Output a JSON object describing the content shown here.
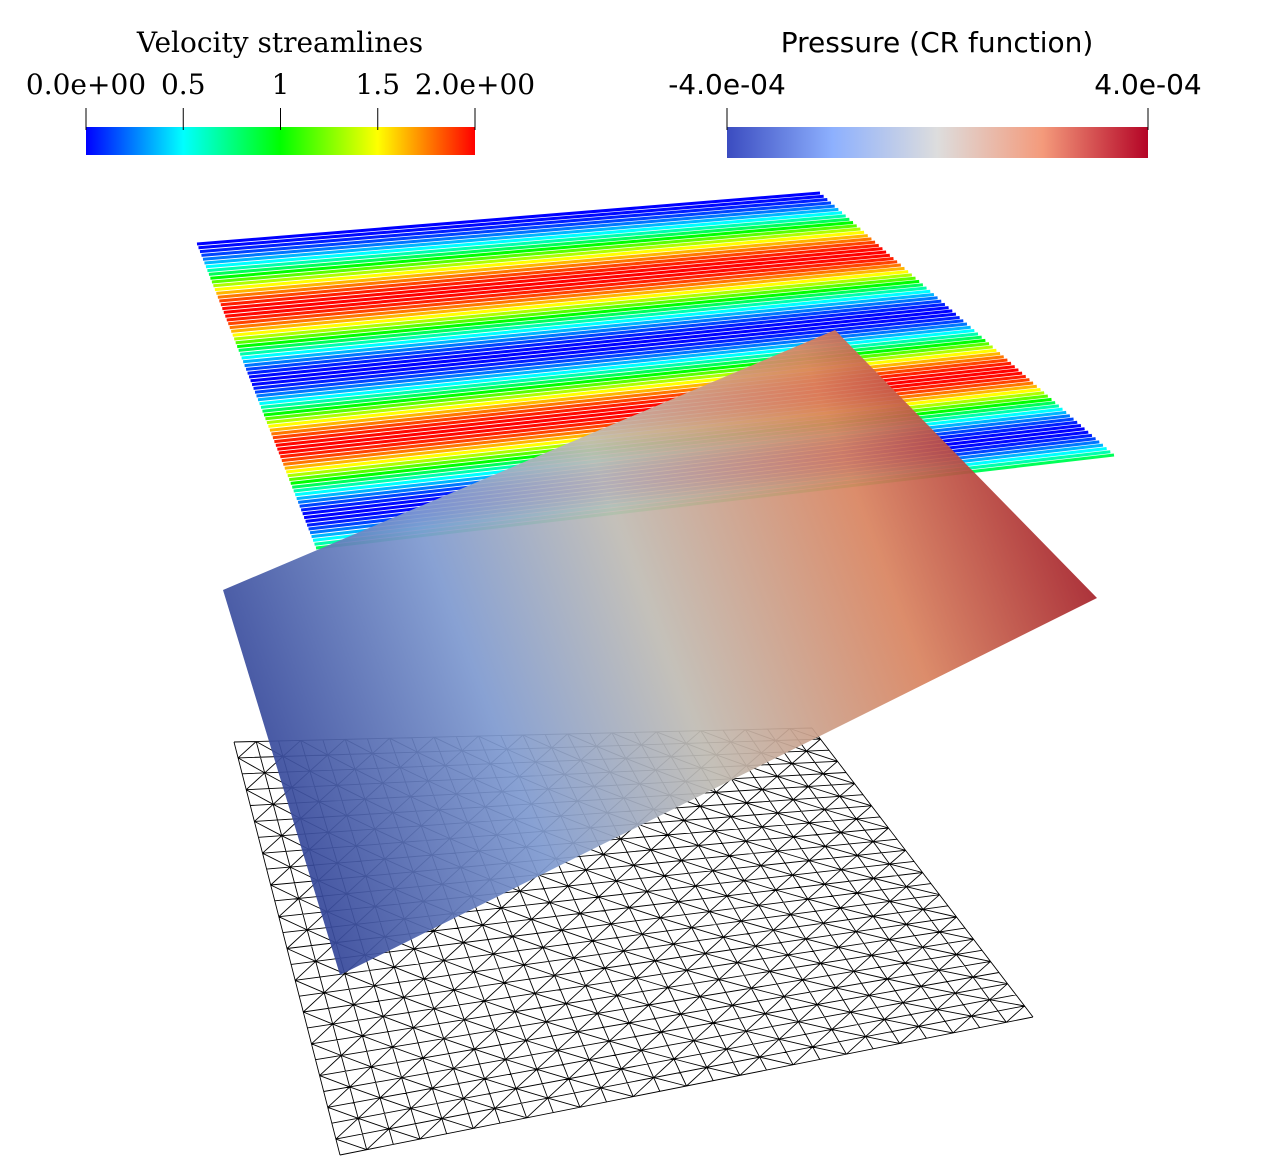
{
  "colorbars": [
    {
      "title": "Velocity streamlines",
      "range": [
        0,
        2
      ],
      "ticks": [
        {
          "value": 0,
          "label": "0.0e+00"
        },
        0.5,
        1,
        1.5,
        {
          "value": 2,
          "label": "2.0e+00"
        }
      ]
    },
    {
      "title": "Pressure (CR function)",
      "range": [
        -0.0004,
        0.0004
      ],
      "ticks": [
        {
          "value": -0.0004,
          "label": "-4.0e-04"
        },
        {
          "value": 0.0004,
          "label": "4.0e-04"
        }
      ]
    }
  ]
}
